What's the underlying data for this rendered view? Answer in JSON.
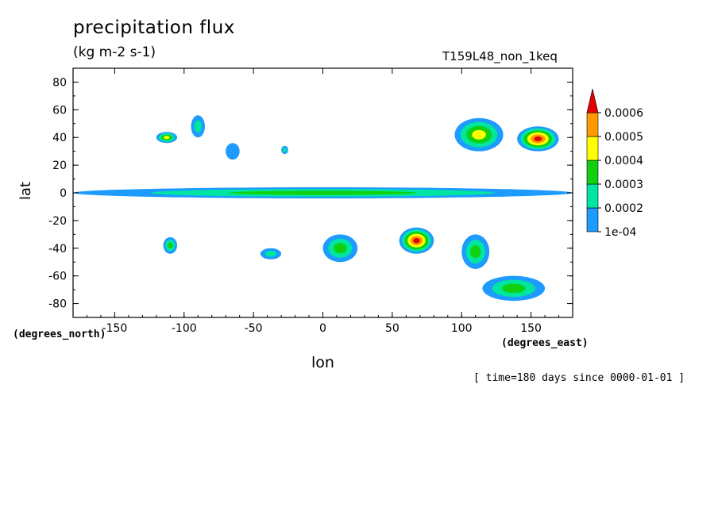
{
  "chart_data": {
    "type": "heatmap",
    "title": "precipitation flux",
    "subtitle": "(kg m-2 s-1)",
    "run_label": "T159L48_non_1keq",
    "xlabel": "lon",
    "ylabel": "lat",
    "x_unit": "(degrees_east)",
    "y_unit": "(degrees_north)",
    "time_note": "[ time=180 days since 0000-01-01 ]",
    "xlim": [
      -180,
      180
    ],
    "ylim": [
      -90,
      90
    ],
    "x_ticks": [
      -150,
      -100,
      -50,
      0,
      50,
      100,
      150
    ],
    "y_ticks": [
      80,
      60,
      40,
      20,
      0,
      -20,
      -40,
      -60,
      -80
    ],
    "x_tick_labels": [
      "-150",
      "-100",
      "-50",
      "0",
      "50",
      "100",
      "150"
    ],
    "y_tick_labels": [
      "80",
      "60",
      "40",
      "20",
      "0",
      "-20",
      "-40",
      "-60",
      "-80"
    ],
    "colorbar": {
      "levels": [
        "1e-04",
        "0.0002",
        "0.0003",
        "0.0004",
        "0.0005",
        "0.0006"
      ],
      "colors": [
        "#1e9bff",
        "#00e6a0",
        "#10d010",
        "#ffff00",
        "#ff9900",
        "#e60000"
      ],
      "extend": "max"
    },
    "features": [
      {
        "lon": [
          -180,
          180
        ],
        "lat": [
          -4,
          4
        ],
        "level": 2,
        "desc": "equatorial band"
      },
      {
        "lon": [
          -120,
          -105
        ],
        "lat": [
          36,
          44
        ],
        "level": 3
      },
      {
        "lon": [
          -95,
          -85
        ],
        "lat": [
          40,
          56
        ],
        "level": 1
      },
      {
        "lon": [
          -70,
          -60
        ],
        "lat": [
          24,
          36
        ],
        "level": 0
      },
      {
        "lon": [
          -30,
          -25
        ],
        "lat": [
          28,
          34
        ],
        "level": 1
      },
      {
        "lon": [
          95,
          130
        ],
        "lat": [
          30,
          54
        ],
        "level": 3
      },
      {
        "lon": [
          140,
          170
        ],
        "lat": [
          30,
          48
        ],
        "level": 5
      },
      {
        "lon": [
          -115,
          -105
        ],
        "lat": [
          -32,
          -44
        ],
        "level": 2
      },
      {
        "lon": [
          -45,
          -30
        ],
        "lat": [
          -40,
          -48
        ],
        "level": 1
      },
      {
        "lon": [
          0,
          25
        ],
        "lat": [
          -30,
          -50
        ],
        "level": 2
      },
      {
        "lon": [
          55,
          80
        ],
        "lat": [
          -25,
          -44
        ],
        "level": 5
      },
      {
        "lon": [
          100,
          120
        ],
        "lat": [
          -30,
          -55
        ],
        "level": 2
      },
      {
        "lon": [
          115,
          160
        ],
        "lat": [
          -60,
          -78
        ],
        "level": 2
      }
    ]
  }
}
